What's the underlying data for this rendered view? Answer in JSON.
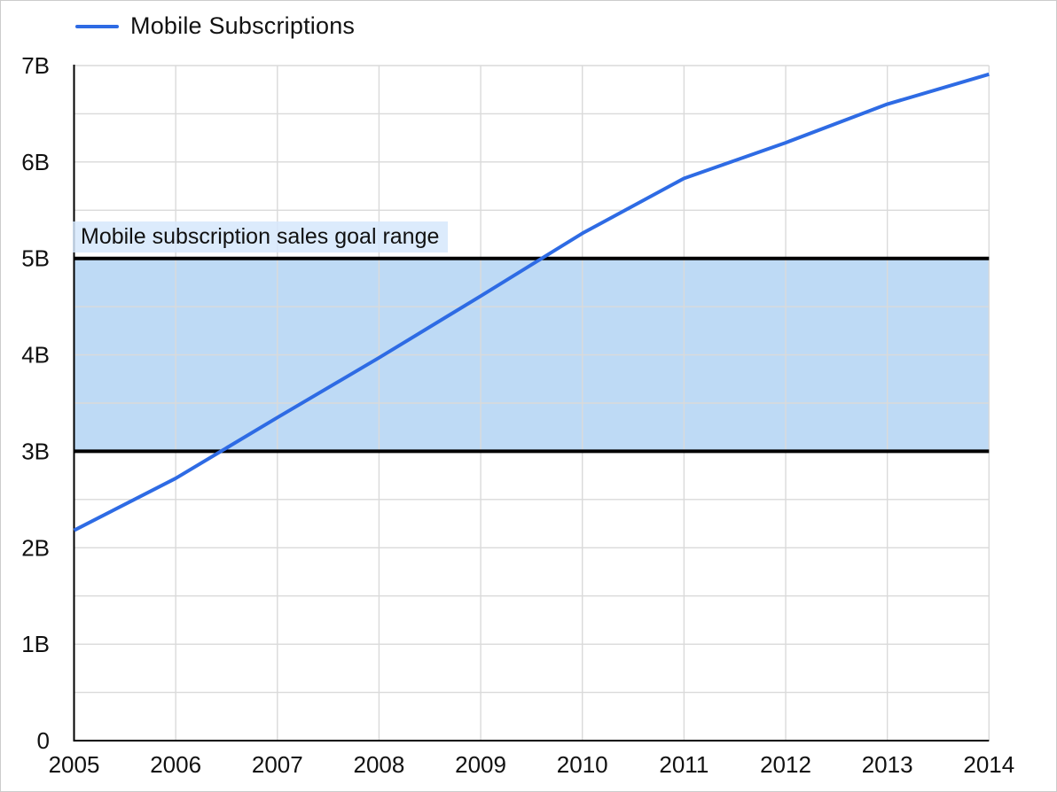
{
  "legend": {
    "label": "Mobile Subscriptions"
  },
  "annotation": {
    "label": "Mobile subscription sales goal range"
  },
  "colors": {
    "line": "#2e6be4",
    "band_fill": "#bedaf5",
    "band_border": "#000000",
    "annotation_bg": "rgba(214,232,252,0.85)",
    "grid": "#dadada",
    "axis": "#000000",
    "text": "#111111",
    "background": "#ffffff"
  },
  "chart_data": {
    "type": "line",
    "title": "",
    "xlabel": "",
    "ylabel": "",
    "x": [
      2005,
      2006,
      2007,
      2008,
      2009,
      2010,
      2011,
      2012,
      2013,
      2014
    ],
    "x_tick_labels": [
      "2005",
      "2006",
      "2007",
      "2008",
      "2009",
      "2010",
      "2011",
      "2012",
      "2013",
      "2014"
    ],
    "series": [
      {
        "name": "Mobile Subscriptions",
        "values": [
          2.18,
          2.72,
          3.35,
          3.97,
          4.61,
          5.26,
          5.83,
          6.2,
          6.6,
          6.91
        ]
      }
    ],
    "unit": "billions",
    "ylim": [
      0,
      7
    ],
    "y_tick_step": 1,
    "y_minor_step": 0.5,
    "y_tick_labels": [
      "0",
      "1B",
      "2B",
      "3B",
      "4B",
      "5B",
      "6B",
      "7B"
    ],
    "grid": true,
    "legend_position": "top-left",
    "band": {
      "from": 3,
      "to": 5,
      "label": "Mobile subscription sales goal range"
    }
  }
}
